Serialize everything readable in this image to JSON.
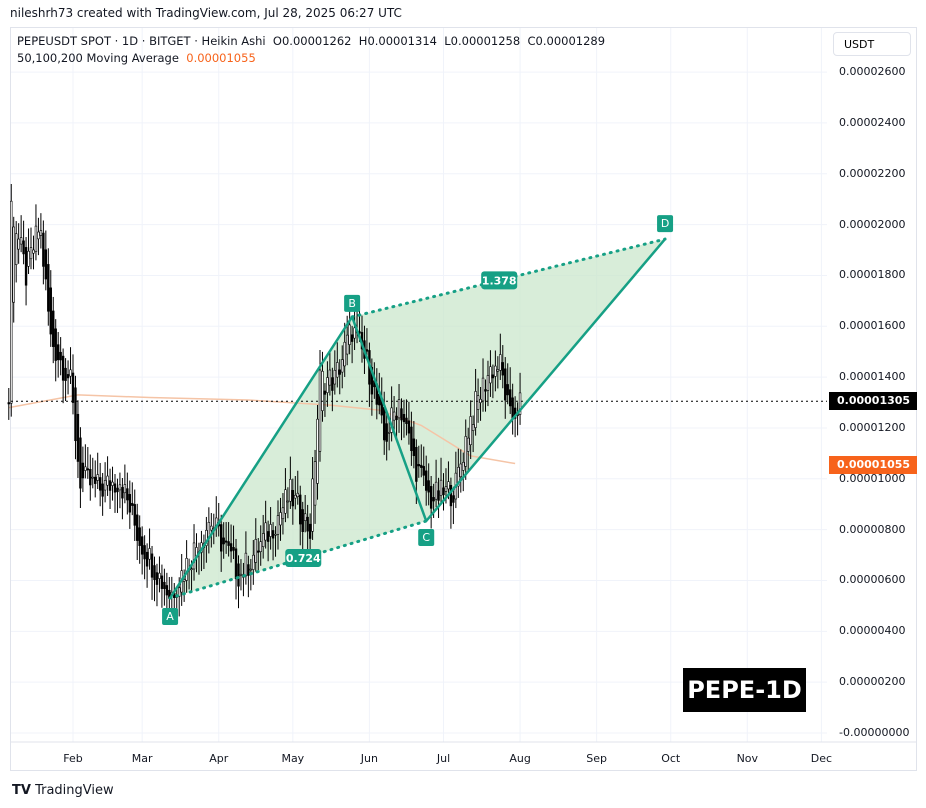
{
  "credit": "nileshrh73 created with TradingView.com, Jul 28, 2025 06:27 UTC",
  "legend": {
    "symbol_line": "PEPEUSDT SPOT · 1D · BITGET · Heikin Ashi",
    "open": "O0.00001262",
    "high": "H0.00001314",
    "low": "L0.00001258",
    "close": "C0.00001289",
    "ma_label": "50,100,200 Moving Average",
    "ma_value": "0.00001055"
  },
  "currency": "USDT",
  "watermark": "PEPE-1D",
  "brand": "TradingView",
  "colors": {
    "pattern": "#16a085",
    "fill": "#c8e6c9",
    "ma": "#f5c4a6",
    "ma_label": "#f7631b",
    "price_label": "#000000"
  },
  "chart_data": {
    "type": "candlestick",
    "title": "PEPEUSDT SPOT · 1D · BITGET · Heikin Ashi",
    "unit": "1e-6 USDT",
    "y_ticks": [
      "0.00002600",
      "0.00002400",
      "0.00002200",
      "0.00002000",
      "0.00001800",
      "0.00001600",
      "0.00001400",
      "0.00001200",
      "0.00001000",
      "0.00000800",
      "0.00000600",
      "0.00000400",
      "0.00000200",
      "-0.00000000"
    ],
    "y_tick_values": [
      26,
      24,
      22,
      20,
      18,
      16,
      14,
      12,
      10,
      8,
      6,
      4,
      2,
      0
    ],
    "x_ticks": [
      "Feb",
      "Mar",
      "Apr",
      "May",
      "Jun",
      "Jul",
      "Aug",
      "Sep",
      "Oct",
      "Nov",
      "Dec"
    ],
    "x_tick_days": [
      31,
      59,
      90,
      120,
      151,
      181,
      212,
      243,
      273,
      304,
      334
    ],
    "price_path": [
      [
        5.5,
        21
      ],
      [
        12,
        18
      ],
      [
        17.6,
        20
      ],
      [
        22,
        15.5
      ],
      [
        29.8,
        13.9
      ],
      [
        33.8,
        10
      ],
      [
        41.9,
        9.6
      ],
      [
        50,
        10
      ],
      [
        58,
        7.6
      ],
      [
        70.3,
        5.4
      ],
      [
        86.5,
        8.4
      ],
      [
        98.6,
        6.2
      ],
      [
        110.8,
        8
      ],
      [
        118.9,
        9.4
      ],
      [
        127,
        8
      ],
      [
        131,
        13.9
      ],
      [
        137,
        13.9
      ],
      [
        144,
        15.9
      ],
      [
        151,
        14.3
      ],
      [
        157,
        11.5
      ],
      [
        163,
        13.1
      ],
      [
        169,
        10.7
      ],
      [
        175.5,
        9.2
      ],
      [
        185.7,
        9.6
      ],
      [
        191.7,
        12.3
      ],
      [
        199.8,
        14.3
      ],
      [
        203.9,
        14.5
      ],
      [
        208,
        12.3
      ],
      [
        212,
        13
      ]
    ],
    "moving_average": [
      [
        5,
        12.8
      ],
      [
        33,
        13.3
      ],
      [
        62,
        13.2
      ],
      [
        102,
        13.1
      ],
      [
        135,
        12.9
      ],
      [
        155,
        12.7
      ],
      [
        172,
        12.1
      ],
      [
        192,
        10.9
      ],
      [
        210,
        10.6
      ]
    ],
    "current_price": {
      "value": 13.05,
      "label": "0.00001305"
    },
    "ma_price": {
      "value": 10.55,
      "label": "0.00001055"
    },
    "pattern": {
      "points": [
        {
          "name": "A",
          "day": 70.3,
          "value": 5.31
        },
        {
          "name": "B",
          "day": 144,
          "value": 16.37
        },
        {
          "name": "C",
          "day": 174,
          "value": 8.34
        },
        {
          "name": "D",
          "day": 270.7,
          "value": 19.43
        }
      ],
      "ratios": [
        {
          "label": "0.724",
          "from": "A",
          "to": "C"
        },
        {
          "label": "1.378",
          "from": "B",
          "to": "D"
        }
      ]
    }
  }
}
